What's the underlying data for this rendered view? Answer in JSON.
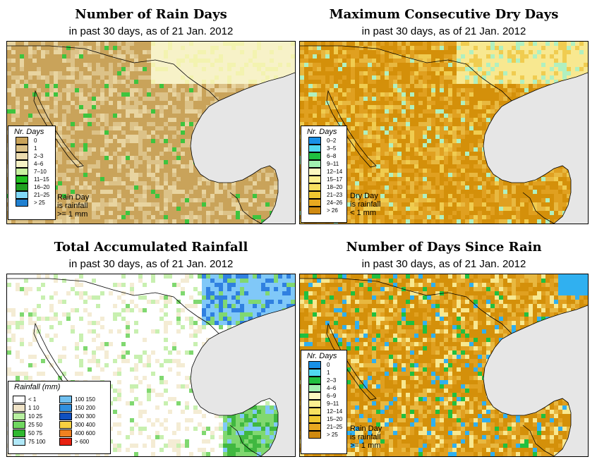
{
  "panels": [
    {
      "id": "rain-days",
      "title": "Number of Rain Days",
      "subtitle": "in past 30 days, as of  21 Jan. 2012",
      "palette": [
        "#c9a35a",
        "#dcc288",
        "#e8d4a0",
        "#f7f2c8",
        "#f3f3b0",
        "#3ec43e",
        "#2aa22a"
      ],
      "legend": {
        "title": "Nr. Days",
        "items": [
          {
            "label": "0",
            "color": "#c9a35a"
          },
          {
            "label": "1",
            "color": "#dcc288"
          },
          {
            "label": "2–3",
            "color": "#ecdcb0"
          },
          {
            "label": "4–6",
            "color": "#f5f2c6"
          },
          {
            "label": "7–10",
            "color": "#c8f0a0"
          },
          {
            "label": "11–15",
            "color": "#20c020"
          },
          {
            "label": "16–20",
            "color": "#20a020"
          },
          {
            "label": "21–25",
            "color": "#80d8f8"
          },
          {
            "label": "> 25",
            "color": "#2080d0"
          }
        ]
      },
      "note": [
        "Rain Day",
        "is rainfall",
        ">= 1 mm"
      ]
    },
    {
      "id": "dry-days",
      "title": "Maximum Consecutive Dry Days",
      "subtitle": "in past 30 days, as of  21 Jan. 2012",
      "palette": [
        "#d4900a",
        "#e0a020",
        "#e8b840",
        "#f0cc50",
        "#f8e890",
        "#b0f0c0",
        "#70e0f0"
      ],
      "legend": {
        "title": "Nr. Days",
        "items": [
          {
            "label": "0–2",
            "color": "#1890e8"
          },
          {
            "label": "3–5",
            "color": "#50d8f0"
          },
          {
            "label": "6–8",
            "color": "#20c040"
          },
          {
            "label": "9–11",
            "color": "#a0f0b0"
          },
          {
            "label": "12–14",
            "color": "#fcf8c0"
          },
          {
            "label": "15–17",
            "color": "#fcf090"
          },
          {
            "label": "18–20",
            "color": "#f8e060"
          },
          {
            "label": "21–23",
            "color": "#f0c830"
          },
          {
            "label": "24–26",
            "color": "#e8a820"
          },
          {
            "label": "> 26",
            "color": "#d08a10"
          }
        ]
      },
      "note": [
        "Dry Day",
        "is rainfall",
        "< 1 mm"
      ]
    },
    {
      "id": "rainfall",
      "title": "Total Accumulated Rainfall",
      "subtitle": "in past 30 days, as of  21 Jan. 2012",
      "palette": [
        "#ffffff",
        "#ffffff",
        "#f4ecd4",
        "#c8f0b0",
        "#80d870",
        "#40b840",
        "#80c8f8",
        "#3080e0"
      ],
      "legend": {
        "title": "Rainfall (mm)",
        "left_items": [
          {
            "label": "< 1",
            "color": "#ffffff"
          },
          {
            "label": "1    10",
            "color": "#f0e4c8"
          },
          {
            "label": "10   25",
            "color": "#b8f0a0"
          },
          {
            "label": "25   50",
            "color": "#70d860"
          },
          {
            "label": "50   75",
            "color": "#30b830"
          },
          {
            "label": "75  100",
            "color": "#b0e8f8"
          }
        ],
        "right_items": [
          {
            "label": "100  150",
            "color": "#70c0f0"
          },
          {
            "label": "150  200",
            "color": "#3090e0"
          },
          {
            "label": "200  300",
            "color": "#1050c0"
          },
          {
            "label": "300  400",
            "color": "#f8d040"
          },
          {
            "label": "400  600",
            "color": "#f08020"
          },
          {
            "label": "> 600",
            "color": "#e82010"
          }
        ]
      }
    },
    {
      "id": "since-rain",
      "title": "Number of Days Since Rain",
      "subtitle": "in past 30 days, as of  21 Jan. 2012",
      "palette": [
        "#d4900a",
        "#e0a020",
        "#e8b840",
        "#f0cc50",
        "#f8e890",
        "#30b0f0",
        "#20c040"
      ],
      "legend": {
        "title": "Nr. Days",
        "items": [
          {
            "label": "0",
            "color": "#1890e8"
          },
          {
            "label": "1",
            "color": "#50d8f0"
          },
          {
            "label": "2–3",
            "color": "#20c040"
          },
          {
            "label": "4–6",
            "color": "#a0f0b0"
          },
          {
            "label": "6–9",
            "color": "#fcf8c0"
          },
          {
            "label": "9–11",
            "color": "#fcf090"
          },
          {
            "label": "12–14",
            "color": "#f8e060"
          },
          {
            "label": "15–20",
            "color": "#f0c830"
          },
          {
            "label": "21–25",
            "color": "#e8a820"
          },
          {
            "label": "> 25",
            "color": "#d08a10"
          }
        ]
      },
      "note": [
        "Rain Day",
        "is rainfall",
        ">= 1 mm"
      ]
    }
  ]
}
